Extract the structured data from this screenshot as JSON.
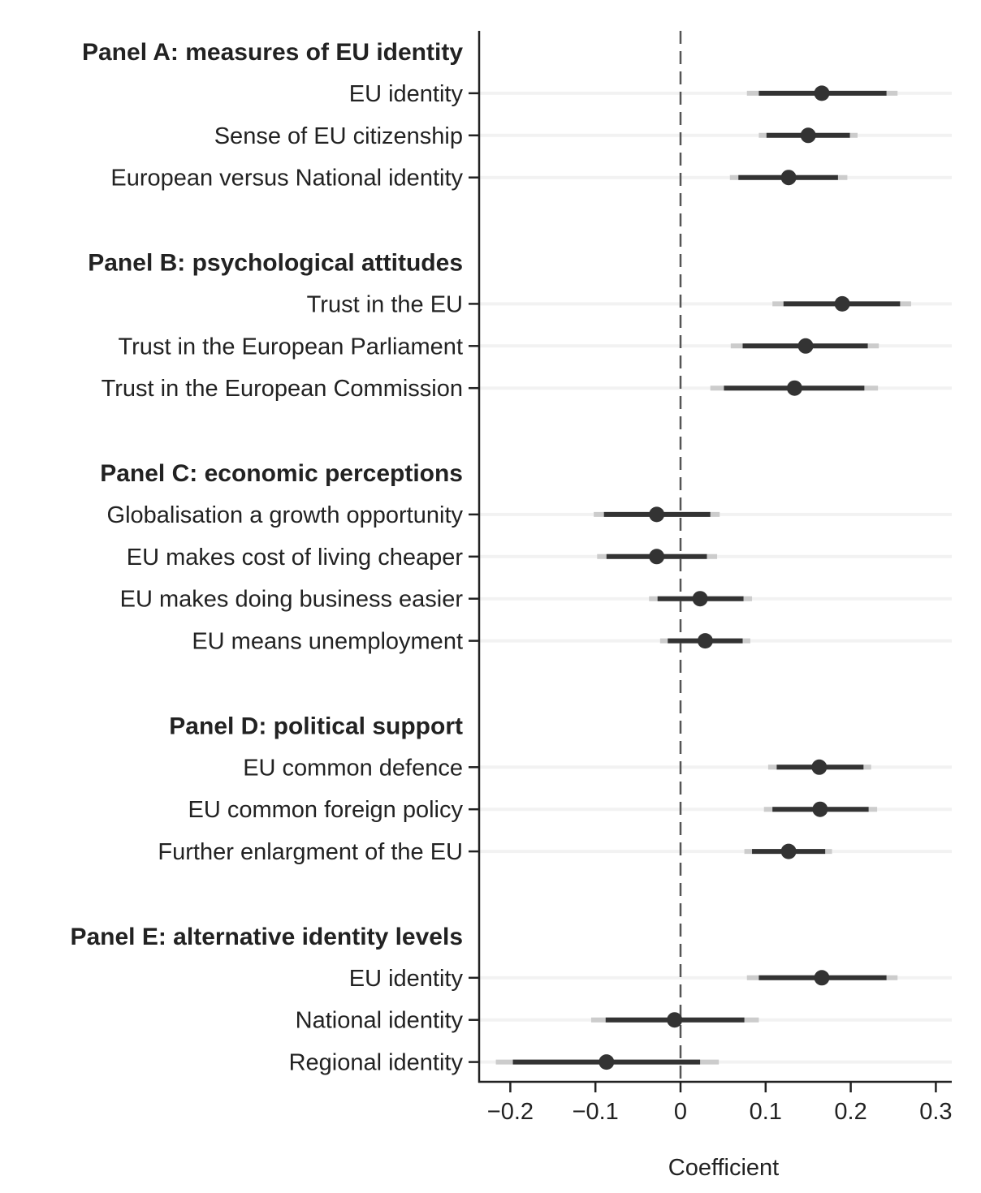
{
  "chart_data": {
    "type": "scatter",
    "subtype": "coefficient-plot",
    "xlabel": "Coefficient",
    "xlim": [
      -0.235,
      0.315
    ],
    "xticks": [
      -0.2,
      -0.1,
      0,
      0.1,
      0.2,
      0.3
    ],
    "xtick_labels": [
      "−0.2",
      "−0.1",
      "0",
      "0.1",
      "0.2",
      "0.3"
    ],
    "reference_line": 0,
    "grid": "horizontal light lines per row",
    "colors": {
      "point": "#333333",
      "ci_inner": "#333333",
      "ci_outer": "#cccccc",
      "refline": "#555555",
      "grid": "#f2f2f2"
    },
    "panels": [
      {
        "title": "Panel A: measures of EU identity",
        "rows": [
          {
            "label": "EU identity",
            "estimate": 0.166,
            "ci90": [
              0.092,
              0.242
            ],
            "ci95": [
              0.078,
              0.255
            ]
          },
          {
            "label": "Sense of EU citizenship",
            "estimate": 0.15,
            "ci90": [
              0.101,
              0.199
            ],
            "ci95": [
              0.092,
              0.208
            ]
          },
          {
            "label": "European versus National identity",
            "estimate": 0.127,
            "ci90": [
              0.068,
              0.185
            ],
            "ci95": [
              0.058,
              0.196
            ]
          }
        ]
      },
      {
        "title": "Panel B: psychological attitudes",
        "rows": [
          {
            "label": "Trust in the EU",
            "estimate": 0.19,
            "ci90": [
              0.121,
              0.258
            ],
            "ci95": [
              0.108,
              0.271
            ]
          },
          {
            "label": "Trust in the European Parliament",
            "estimate": 0.147,
            "ci90": [
              0.073,
              0.22
            ],
            "ci95": [
              0.059,
              0.233
            ]
          },
          {
            "label": "Trust in the European Commission",
            "estimate": 0.134,
            "ci90": [
              0.051,
              0.216
            ],
            "ci95": [
              0.035,
              0.232
            ]
          }
        ]
      },
      {
        "title": "Panel C: economic perceptions",
        "rows": [
          {
            "label": "Globalisation a growth opportunity",
            "estimate": -0.028,
            "ci90": [
              -0.09,
              0.035
            ],
            "ci95": [
              -0.102,
              0.046
            ]
          },
          {
            "label": "EU makes cost of living cheaper",
            "estimate": -0.028,
            "ci90": [
              -0.087,
              0.031
            ],
            "ci95": [
              -0.098,
              0.043
            ]
          },
          {
            "label": "EU makes doing business easier",
            "estimate": 0.023,
            "ci90": [
              -0.027,
              0.074
            ],
            "ci95": [
              -0.037,
              0.084
            ]
          },
          {
            "label": "EU means unemployment",
            "estimate": 0.029,
            "ci90": [
              -0.015,
              0.073
            ],
            "ci95": [
              -0.024,
              0.082
            ]
          }
        ]
      },
      {
        "title": "Panel D: political support",
        "rows": [
          {
            "label": "EU common defence",
            "estimate": 0.163,
            "ci90": [
              0.113,
              0.215
            ],
            "ci95": [
              0.103,
              0.224
            ]
          },
          {
            "label": "EU common foreign policy",
            "estimate": 0.164,
            "ci90": [
              0.108,
              0.221
            ],
            "ci95": [
              0.098,
              0.231
            ]
          },
          {
            "label": "Further enlargment of the EU",
            "estimate": 0.127,
            "ci90": [
              0.084,
              0.17
            ],
            "ci95": [
              0.075,
              0.178
            ]
          }
        ]
      },
      {
        "title": "Panel E: alternative identity levels",
        "rows": [
          {
            "label": "EU identity",
            "estimate": 0.166,
            "ci90": [
              0.092,
              0.242
            ],
            "ci95": [
              0.078,
              0.255
            ]
          },
          {
            "label": "National identity",
            "estimate": -0.007,
            "ci90": [
              -0.088,
              0.075
            ],
            "ci95": [
              -0.105,
              0.092
            ]
          },
          {
            "label": "Regional identity",
            "estimate": -0.087,
            "ci90": [
              -0.197,
              0.023
            ],
            "ci95": [
              -0.217,
              0.045
            ]
          }
        ]
      }
    ]
  }
}
